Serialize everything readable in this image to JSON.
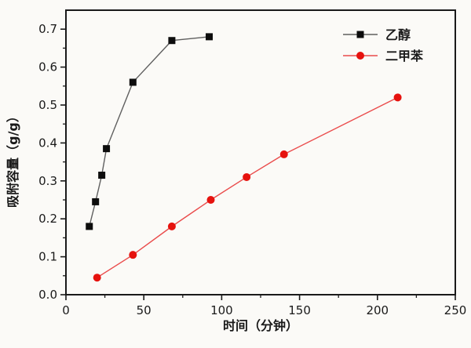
{
  "figure": {
    "description_labels": {
      "xlabel": "时间（分钟）",
      "ylabel": "吸附容量（g/g）"
    }
  },
  "chart_data": {
    "type": "line",
    "title": "",
    "xlabel": "时间（分钟）",
    "ylabel": "吸附容量（g/g）",
    "xlim": [
      0,
      250
    ],
    "ylim": [
      0,
      0.75
    ],
    "x_major_ticks": [
      0,
      50,
      100,
      150,
      200,
      250
    ],
    "x_minor_step": 25,
    "y_major_ticks": [
      0.0,
      0.1,
      0.2,
      0.3,
      0.4,
      0.5,
      0.6,
      0.7
    ],
    "y_minor_step": 0.05,
    "grid": false,
    "legend_position": "top-right-inside",
    "frame": true,
    "colors": {
      "axis": "#1a1a1a",
      "background": "#fbfaf7"
    },
    "series": [
      {
        "name": "乙醇",
        "marker": "square",
        "marker_color": "#0d0d0d",
        "line_color": "#5f5f5f",
        "x": [
          15,
          19,
          23,
          26,
          43,
          68,
          92
        ],
        "y": [
          0.18,
          0.245,
          0.315,
          0.385,
          0.56,
          0.67,
          0.68
        ]
      },
      {
        "name": "二甲苯",
        "marker": "circle",
        "marker_color": "#e6120e",
        "line_color": "#ea4b4b",
        "x": [
          20,
          43,
          68,
          93,
          116,
          140,
          213
        ],
        "y": [
          0.045,
          0.105,
          0.18,
          0.25,
          0.31,
          0.37,
          0.52
        ]
      }
    ]
  }
}
